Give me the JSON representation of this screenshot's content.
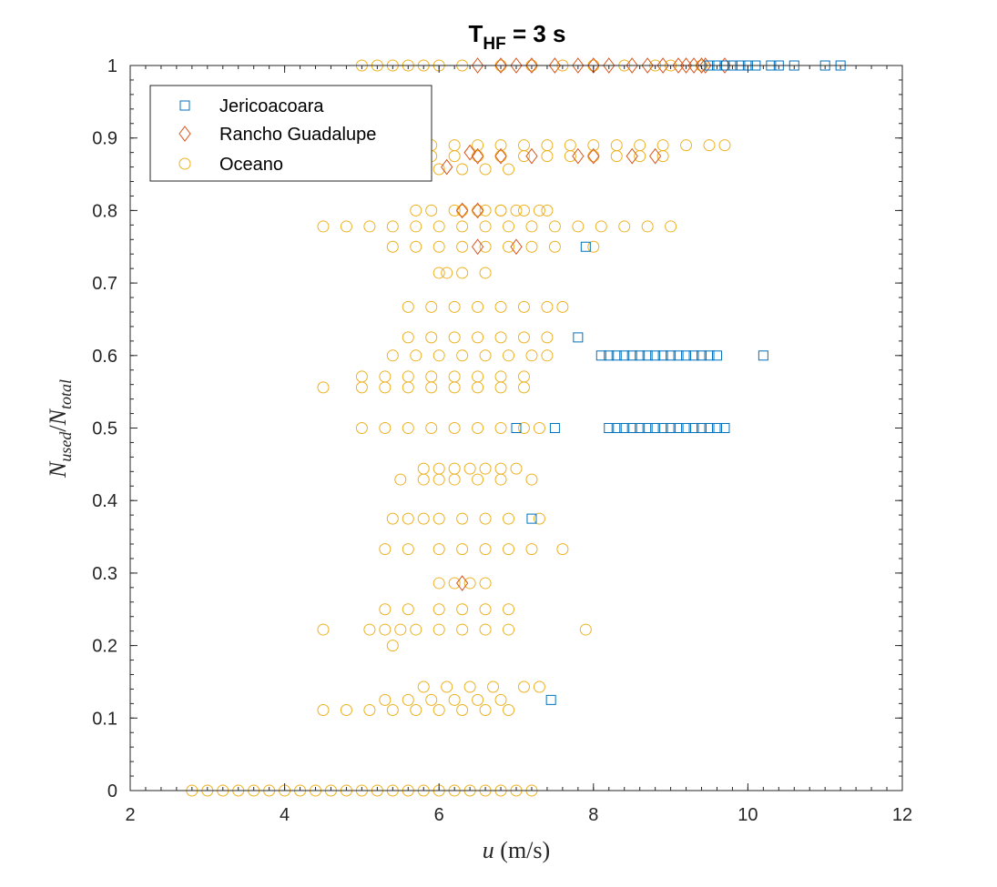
{
  "chart_data": {
    "type": "scatter",
    "title": {
      "main": "T",
      "sub": "HF",
      "rest": " = 3 s"
    },
    "xlabel": {
      "var": "u",
      "unit": " (m/s)"
    },
    "ylabel": {
      "base1": "N",
      "sub1": "used",
      "sep": "/",
      "base2": "N",
      "sub2": "total"
    },
    "xlim": [
      2,
      12
    ],
    "ylim": [
      0,
      1
    ],
    "xticks": [
      "2",
      "4",
      "6",
      "8",
      "10",
      "12"
    ],
    "yticks": [
      "0",
      "0.1",
      "0.2",
      "0.3",
      "0.4",
      "0.5",
      "0.6",
      "0.7",
      "0.8",
      "0.9",
      "1"
    ],
    "grid": false,
    "legend_position": "top-left",
    "series": [
      {
        "name": "Jericoacoara",
        "marker": "square",
        "color": "#0072BD",
        "x": [
          9.5,
          9.6,
          9.7,
          9.8,
          9.9,
          10.0,
          10.1,
          10.3,
          10.4,
          10.6,
          11.0,
          11.2,
          7.8,
          7.9,
          8.1,
          8.2,
          8.3,
          8.4,
          8.5,
          8.6,
          8.7,
          8.8,
          8.9,
          9.0,
          9.1,
          9.2,
          9.3,
          9.4,
          9.5,
          9.6,
          10.2,
          7.0,
          7.5,
          8.2,
          8.3,
          8.4,
          8.5,
          8.6,
          8.7,
          8.8,
          8.9,
          9.0,
          9.1,
          9.2,
          9.3,
          9.4,
          9.5,
          9.6,
          9.7,
          7.2,
          7.45
        ],
        "y": [
          1,
          1,
          1,
          1,
          1,
          1,
          1,
          1,
          1,
          1,
          1,
          1,
          0.625,
          0.75,
          0.6,
          0.6,
          0.6,
          0.6,
          0.6,
          0.6,
          0.6,
          0.6,
          0.6,
          0.6,
          0.6,
          0.6,
          0.6,
          0.6,
          0.6,
          0.6,
          0.6,
          0.5,
          0.5,
          0.5,
          0.5,
          0.5,
          0.5,
          0.5,
          0.5,
          0.5,
          0.5,
          0.5,
          0.5,
          0.5,
          0.5,
          0.5,
          0.5,
          0.5,
          0.5,
          0.375,
          0.125
        ]
      },
      {
        "name": "Rancho Guadalupe",
        "marker": "diamond",
        "color": "#D95319",
        "x": [
          6.5,
          6.8,
          7.0,
          7.2,
          7.5,
          7.8,
          8.0,
          8.2,
          8.5,
          8.7,
          8.9,
          9.1,
          9.2,
          9.3,
          9.4,
          9.45,
          9.7,
          6.1,
          6.4,
          6.5,
          6.8,
          7.2,
          7.8,
          8.0,
          8.5,
          8.8,
          6.3,
          6.5,
          6.5,
          7.0,
          6.3
        ],
        "y": [
          1,
          1,
          1,
          1,
          1,
          1,
          1,
          1,
          1,
          1,
          1,
          1,
          1,
          1,
          1,
          1,
          1,
          0.86,
          0.88,
          0.875,
          0.875,
          0.875,
          0.875,
          0.875,
          0.875,
          0.875,
          0.8,
          0.8,
          0.75,
          0.75,
          0.286
        ]
      },
      {
        "name": "Oceano",
        "marker": "circle",
        "color": "#EDB120",
        "x": [
          5.0,
          5.2,
          5.4,
          5.6,
          5.8,
          6.0,
          6.3,
          6.8,
          7.2,
          7.6,
          8.0,
          8.4,
          8.8,
          9.0,
          9.4,
          5.9,
          6.2,
          6.5,
          6.8,
          7.1,
          7.4,
          7.7,
          8.0,
          8.3,
          8.6,
          8.9,
          9.2,
          9.5,
          9.7,
          5.9,
          6.2,
          6.5,
          6.8,
          7.1,
          7.4,
          7.7,
          8.0,
          8.3,
          8.6,
          8.9,
          6.0,
          6.3,
          6.6,
          6.9,
          5.9,
          6.2,
          6.5,
          6.8,
          7.1,
          7.4,
          5.7,
          6.3,
          6.6,
          6.8,
          7.0,
          7.3,
          4.5,
          4.8,
          5.1,
          5.4,
          5.7,
          6.0,
          6.3,
          6.6,
          6.9,
          7.2,
          7.5,
          7.8,
          8.1,
          8.4,
          8.7,
          9.0,
          5.4,
          5.7,
          6.0,
          6.3,
          6.6,
          6.9,
          7.2,
          7.5,
          8.0,
          6.0,
          6.1,
          6.3,
          6.6,
          5.6,
          5.9,
          6.2,
          6.5,
          6.8,
          7.1,
          7.4,
          7.6,
          5.6,
          5.9,
          6.2,
          6.5,
          6.8,
          7.1,
          7.4,
          5.4,
          5.7,
          6.0,
          6.3,
          6.6,
          6.9,
          7.2,
          7.4,
          5.0,
          5.3,
          5.6,
          5.9,
          6.2,
          6.5,
          6.8,
          7.1,
          4.5,
          5.0,
          5.3,
          5.6,
          5.9,
          6.2,
          6.5,
          6.8,
          7.1,
          5.0,
          5.3,
          5.6,
          5.9,
          6.2,
          6.5,
          6.8,
          7.1,
          7.3,
          5.8,
          6.0,
          6.2,
          6.4,
          6.6,
          6.8,
          7.0,
          5.5,
          5.8,
          6.0,
          6.2,
          6.5,
          6.8,
          7.2,
          5.4,
          5.6,
          5.8,
          6.0,
          6.3,
          6.6,
          6.9,
          7.3,
          5.3,
          5.6,
          6.0,
          6.3,
          6.6,
          6.9,
          7.2,
          7.6,
          6.0,
          6.2,
          6.4,
          6.6,
          5.3,
          5.6,
          6.0,
          6.3,
          6.6,
          6.9,
          4.5,
          5.1,
          5.3,
          5.5,
          5.7,
          6.0,
          6.3,
          6.6,
          6.9,
          7.9,
          5.4,
          5.8,
          6.1,
          6.4,
          6.7,
          7.1,
          7.3,
          5.3,
          5.6,
          5.9,
          6.2,
          6.5,
          6.8,
          4.5,
          4.8,
          5.1,
          5.4,
          5.7,
          6.0,
          6.3,
          6.6,
          6.9,
          2.8,
          3.0,
          3.2,
          3.4,
          3.6,
          3.8,
          4.0,
          4.2,
          4.4,
          4.6,
          4.8,
          5.0,
          5.2,
          5.4,
          5.6,
          5.8,
          6.0,
          6.2,
          6.4,
          6.6,
          6.8,
          7.0,
          7.2
        ],
        "y": [
          1,
          1,
          1,
          1,
          1,
          1,
          1,
          1,
          1,
          1,
          1,
          1,
          1,
          1,
          1,
          0.89,
          0.89,
          0.89,
          0.89,
          0.89,
          0.89,
          0.89,
          0.89,
          0.89,
          0.89,
          0.89,
          0.89,
          0.89,
          0.89,
          0.875,
          0.875,
          0.875,
          0.875,
          0.875,
          0.875,
          0.875,
          0.875,
          0.875,
          0.875,
          0.875,
          0.857,
          0.857,
          0.857,
          0.857,
          0.8,
          0.8,
          0.8,
          0.8,
          0.8,
          0.8,
          0.8,
          0.8,
          0.8,
          0.8,
          0.8,
          0.8,
          0.778,
          0.778,
          0.778,
          0.778,
          0.778,
          0.778,
          0.778,
          0.778,
          0.778,
          0.778,
          0.778,
          0.778,
          0.778,
          0.778,
          0.778,
          0.778,
          0.75,
          0.75,
          0.75,
          0.75,
          0.75,
          0.75,
          0.75,
          0.75,
          0.75,
          0.714,
          0.714,
          0.714,
          0.714,
          0.667,
          0.667,
          0.667,
          0.667,
          0.667,
          0.667,
          0.667,
          0.667,
          0.625,
          0.625,
          0.625,
          0.625,
          0.625,
          0.625,
          0.625,
          0.6,
          0.6,
          0.6,
          0.6,
          0.6,
          0.6,
          0.6,
          0.6,
          0.571,
          0.571,
          0.571,
          0.571,
          0.571,
          0.571,
          0.571,
          0.571,
          0.556,
          0.556,
          0.556,
          0.556,
          0.556,
          0.556,
          0.556,
          0.556,
          0.556,
          0.5,
          0.5,
          0.5,
          0.5,
          0.5,
          0.5,
          0.5,
          0.5,
          0.5,
          0.444,
          0.444,
          0.444,
          0.444,
          0.444,
          0.444,
          0.444,
          0.429,
          0.429,
          0.429,
          0.429,
          0.429,
          0.429,
          0.429,
          0.375,
          0.375,
          0.375,
          0.375,
          0.375,
          0.375,
          0.375,
          0.375,
          0.333,
          0.333,
          0.333,
          0.333,
          0.333,
          0.333,
          0.333,
          0.333,
          0.286,
          0.286,
          0.286,
          0.286,
          0.25,
          0.25,
          0.25,
          0.25,
          0.25,
          0.25,
          0.222,
          0.222,
          0.222,
          0.222,
          0.222,
          0.222,
          0.222,
          0.222,
          0.222,
          0.222,
          0.2,
          0.143,
          0.143,
          0.143,
          0.143,
          0.143,
          0.143,
          0.125,
          0.125,
          0.125,
          0.125,
          0.125,
          0.125,
          0.111,
          0.111,
          0.111,
          0.111,
          0.111,
          0.111,
          0.111,
          0.111,
          0.111,
          0,
          0,
          0,
          0,
          0,
          0,
          0,
          0,
          0,
          0,
          0,
          0,
          0,
          0,
          0,
          0,
          0,
          0,
          0,
          0,
          0,
          0,
          0
        ]
      }
    ]
  }
}
